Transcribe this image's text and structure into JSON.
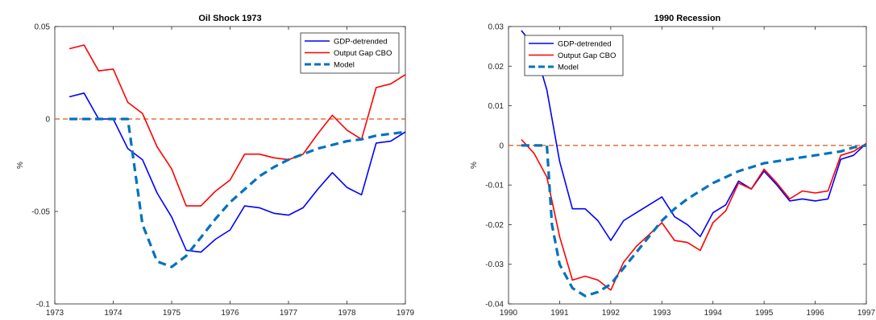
{
  "colors": {
    "gdp": "#0000ff",
    "cbo": "#ff0000",
    "model": "#0072bd",
    "zero_line": "#d95319",
    "axis": "#262626"
  },
  "chart_data": [
    {
      "type": "line",
      "title": "Oil Shock 1973",
      "xlabel": "",
      "ylabel": "%",
      "xlim": [
        1973,
        1979
      ],
      "ylim": [
        -0.1,
        0.05
      ],
      "xticks": [
        "1973",
        "1974",
        "1975",
        "1976",
        "1977",
        "1978",
        "1979"
      ],
      "yticks": [
        "-0.1",
        "-0.05",
        "0",
        "0.05"
      ],
      "grid": false,
      "legend_position": "top-right",
      "zero_line": true,
      "series": [
        {
          "name": "GDP-detrended",
          "style": "solid",
          "x": [
            1973.25,
            1973.5,
            1973.75,
            1974.0,
            1974.25,
            1974.5,
            1974.75,
            1975.0,
            1975.25,
            1975.5,
            1975.75,
            1976.0,
            1976.25,
            1976.5,
            1976.75,
            1977.0,
            1977.25,
            1977.5,
            1977.75,
            1978.0,
            1978.25,
            1978.5,
            1978.75,
            1979.0
          ],
          "values": [
            0.012,
            0.014,
            0.0,
            0.0,
            -0.016,
            -0.022,
            -0.04,
            -0.053,
            -0.071,
            -0.072,
            -0.065,
            -0.06,
            -0.047,
            -0.048,
            -0.051,
            -0.052,
            -0.048,
            -0.038,
            -0.029,
            -0.037,
            -0.041,
            -0.013,
            -0.012,
            -0.007
          ]
        },
        {
          "name": "Output Gap CBO",
          "style": "solid",
          "x": [
            1973.25,
            1973.5,
            1973.75,
            1974.0,
            1974.25,
            1974.5,
            1974.75,
            1975.0,
            1975.25,
            1975.5,
            1975.75,
            1976.0,
            1976.25,
            1976.5,
            1976.75,
            1977.0,
            1977.25,
            1977.5,
            1977.75,
            1978.0,
            1978.25,
            1978.5,
            1978.75,
            1979.0
          ],
          "values": [
            0.038,
            0.04,
            0.026,
            0.027,
            0.009,
            0.003,
            -0.015,
            -0.027,
            -0.047,
            -0.047,
            -0.039,
            -0.033,
            -0.019,
            -0.019,
            -0.021,
            -0.022,
            -0.019,
            -0.008,
            0.002,
            -0.006,
            -0.011,
            0.017,
            0.019,
            0.024
          ]
        },
        {
          "name": "Model",
          "style": "dashed",
          "x": [
            1973.25,
            1973.5,
            1973.75,
            1974.0,
            1974.25,
            1974.5,
            1974.75,
            1975.0,
            1975.25,
            1975.5,
            1975.75,
            1976.0,
            1976.25,
            1976.5,
            1976.75,
            1977.0,
            1977.25,
            1977.5,
            1977.75,
            1978.0,
            1978.25,
            1978.5,
            1978.75,
            1979.0
          ],
          "values": [
            0.0,
            0.0,
            0.0,
            0.0,
            0.0,
            -0.057,
            -0.077,
            -0.08,
            -0.074,
            -0.064,
            -0.054,
            -0.045,
            -0.038,
            -0.031,
            -0.026,
            -0.022,
            -0.019,
            -0.016,
            -0.014,
            -0.012,
            -0.011,
            -0.009,
            -0.008,
            -0.007
          ]
        }
      ]
    },
    {
      "type": "line",
      "title": "1990 Recession",
      "xlabel": "",
      "ylabel": "%",
      "xlim": [
        1990,
        1997
      ],
      "ylim": [
        -0.04,
        0.03
      ],
      "xticks": [
        "1990",
        "1991",
        "1992",
        "1993",
        "1994",
        "1995",
        "1996",
        "1997"
      ],
      "yticks": [
        "-0.04",
        "-0.03",
        "-0.02",
        "-0.01",
        "0",
        "0.01",
        "0.02",
        "0.03"
      ],
      "grid": false,
      "legend_position": "top-left",
      "zero_line": true,
      "series": [
        {
          "name": "GDP-detrended",
          "style": "solid",
          "x": [
            1990.25,
            1990.5,
            1990.75,
            1991.0,
            1991.25,
            1991.5,
            1991.75,
            1992.0,
            1992.25,
            1992.5,
            1992.75,
            1993.0,
            1993.25,
            1993.5,
            1993.75,
            1994.0,
            1994.25,
            1994.5,
            1994.75,
            1995.0,
            1995.25,
            1995.5,
            1995.75,
            1996.0,
            1996.25,
            1996.5,
            1996.75,
            1997.0
          ],
          "values": [
            0.029,
            0.025,
            0.014,
            -0.004,
            -0.016,
            -0.016,
            -0.019,
            -0.024,
            -0.019,
            -0.017,
            -0.015,
            -0.013,
            -0.018,
            -0.02,
            -0.023,
            -0.017,
            -0.015,
            -0.009,
            -0.011,
            -0.0065,
            -0.01,
            -0.014,
            -0.0135,
            -0.014,
            -0.0135,
            -0.0035,
            -0.0025,
            0.0005
          ]
        },
        {
          "name": "Output Gap CBO",
          "style": "solid",
          "x": [
            1990.25,
            1990.5,
            1990.75,
            1991.0,
            1991.25,
            1991.5,
            1991.75,
            1992.0,
            1992.25,
            1992.5,
            1992.75,
            1993.0,
            1993.25,
            1993.5,
            1993.75,
            1994.0,
            1994.25,
            1994.5,
            1994.75,
            1995.0,
            1995.25,
            1995.5,
            1995.75,
            1996.0,
            1996.25,
            1996.5,
            1996.75,
            1997.0
          ],
          "values": [
            0.0015,
            -0.002,
            -0.008,
            -0.023,
            -0.034,
            -0.033,
            -0.034,
            -0.0365,
            -0.0295,
            -0.0255,
            -0.0225,
            -0.0195,
            -0.024,
            -0.0245,
            -0.0265,
            -0.0195,
            -0.0165,
            -0.0095,
            -0.011,
            -0.006,
            -0.0095,
            -0.0135,
            -0.0115,
            -0.012,
            -0.0115,
            -0.0025,
            -0.0015,
            0.0005
          ]
        },
        {
          "name": "Model",
          "style": "dashed",
          "x": [
            1990.25,
            1990.5,
            1990.75,
            1990.85,
            1991.0,
            1991.25,
            1991.5,
            1991.75,
            1992.0,
            1992.25,
            1992.5,
            1992.75,
            1993.0,
            1993.25,
            1993.5,
            1993.75,
            1994.0,
            1994.25,
            1994.5,
            1994.75,
            1995.0,
            1995.25,
            1995.5,
            1995.75,
            1996.0,
            1996.25,
            1996.5,
            1996.75,
            1997.0
          ],
          "values": [
            0.0,
            0.0,
            0.0,
            -0.02,
            -0.03,
            -0.036,
            -0.038,
            -0.037,
            -0.035,
            -0.031,
            -0.027,
            -0.023,
            -0.019,
            -0.016,
            -0.0135,
            -0.0115,
            -0.0095,
            -0.008,
            -0.0065,
            -0.0055,
            -0.0045,
            -0.004,
            -0.0035,
            -0.003,
            -0.0025,
            -0.002,
            -0.0015,
            -0.0005,
            0.0
          ]
        }
      ]
    }
  ]
}
